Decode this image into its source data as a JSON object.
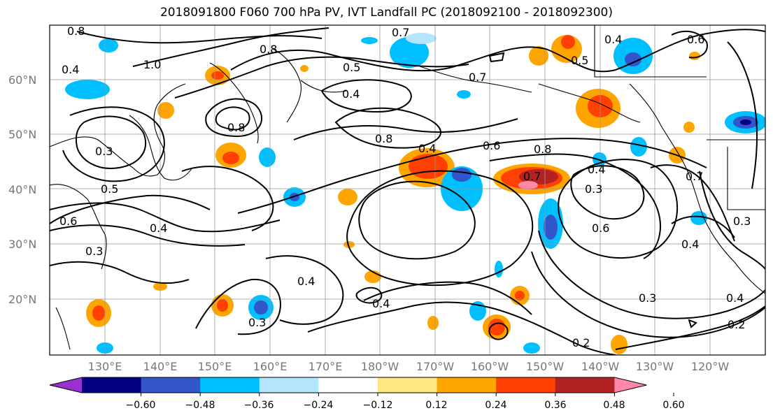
{
  "title": "2018091800 F060 700 hPa PV, IVT Landfall PC (2018092100 - 2018092300)",
  "map": {
    "lat_labels": [
      "60°N",
      "50°N",
      "40°N",
      "30°N",
      "20°N"
    ],
    "lon_labels": [
      "130°E",
      "140°E",
      "150°E",
      "160°E",
      "170°E",
      "180°W",
      "170°W",
      "160°W",
      "150°W",
      "140°W",
      "130°W",
      "120°W"
    ],
    "contour_labels": [
      "0.8",
      "0.7",
      "0.6",
      "0.4",
      "0.5",
      "1.0",
      "0.4",
      "0.8",
      "0.5",
      "0.4",
      "0.3",
      "0.8",
      "0.7",
      "0.8",
      "0.6",
      "0.4",
      "0.7",
      "0.6",
      "0.8",
      "0.4",
      "0.3",
      "0.5",
      "0.4",
      "0.3",
      "0.4",
      "0.6",
      "0.3",
      "0.3",
      "0.4",
      "0.2",
      "0.3",
      "0.4",
      "0.4",
      "0.2",
      "0.7"
    ]
  },
  "colorbar": {
    "colors": [
      "#9b30d0",
      "#000080",
      "#3355cc",
      "#00bfff",
      "#b3e5fc",
      "#ffffff",
      "#ffe680",
      "#ffa500",
      "#ff4000",
      "#b22222",
      "#ff88aa"
    ],
    "tick_labels": [
      "−0.60",
      "−0.48",
      "−0.36",
      "−0.24",
      "−0.12",
      "0.12",
      "0.24",
      "0.36",
      "0.48",
      "0.60"
    ]
  }
}
